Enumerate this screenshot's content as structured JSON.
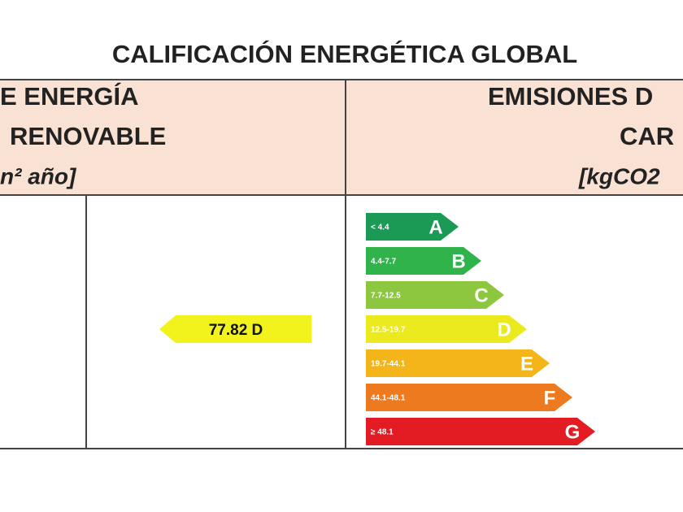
{
  "title": "CALIFICACIÓN ENERGÉTICA GLOBAL",
  "header": {
    "left": [
      "E ENERGÍA",
      "RENOVABLE",
      "n² año]"
    ],
    "right": [
      "EMISIONES D",
      "CAR",
      "[kgCO2"
    ]
  },
  "scale": [
    {
      "range": "< 4.4",
      "letter": "A",
      "color": "#1a9a55"
    },
    {
      "range": "4.4-7.7",
      "letter": "B",
      "color": "#2fb34a"
    },
    {
      "range": "7.7-12.5",
      "letter": "C",
      "color": "#8dc63f"
    },
    {
      "range": "12.5-19.7",
      "letter": "D",
      "color": "#eaea1e"
    },
    {
      "range": "19.7-44.1",
      "letter": "E",
      "color": "#f3b51a"
    },
    {
      "range": "44.1-48.1",
      "letter": "F",
      "color": "#ee7a1f"
    },
    {
      "range": "≥ 48.1",
      "letter": "G",
      "color": "#e31b23"
    }
  ],
  "rating": {
    "label": "77.82 D",
    "color": "#f2f21c"
  }
}
